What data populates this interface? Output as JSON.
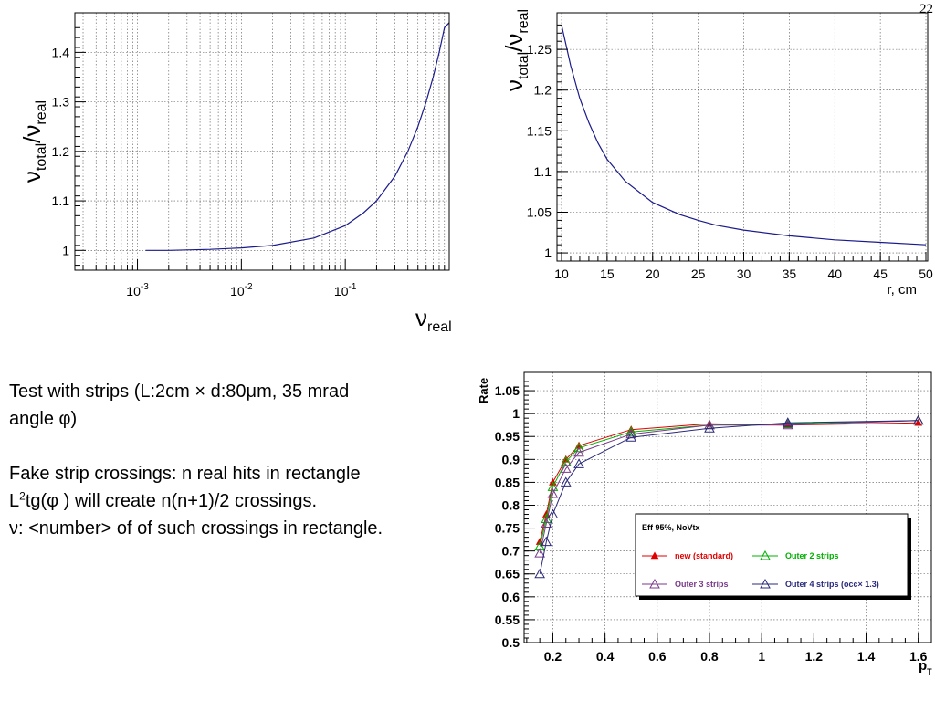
{
  "slide_number": "22",
  "text": {
    "line1": "Test with strips (L:2cm × d:80μm, 35 mrad",
    "line2": "angle φ)",
    "line3": "Fake strip crossings:  n real hits in rectangle",
    "line4_pre": "L",
    "line4_sup": "2",
    "line4_post": "tg(φ ) will create n(n+1)/2 crossings.",
    "line5": "ν: <number> of of such crossings in rectangle."
  },
  "chart_data": [
    {
      "type": "line",
      "xscale": "log",
      "xlim": [
        0.00025,
        1.0
      ],
      "ylim": [
        0.96,
        1.48
      ],
      "grid": true,
      "ylabel": {
        "main": "ν",
        "sub1": "total",
        "sep": "/ν",
        "sub2": "real"
      },
      "xlabel": {
        "main": "ν",
        "sub": "real"
      },
      "yticks": [
        {
          "v": 1,
          "label": "1"
        },
        {
          "v": 1.1,
          "label": "1.1"
        },
        {
          "v": 1.2,
          "label": "1.2"
        },
        {
          "v": 1.3,
          "label": "1.3"
        },
        {
          "v": 1.4,
          "label": "1.4"
        }
      ],
      "xticks": [
        {
          "v": 0.001,
          "base": "10",
          "exp": "-3"
        },
        {
          "v": 0.01,
          "base": "10",
          "exp": "-2"
        },
        {
          "v": 0.1,
          "base": "10",
          "exp": "-1"
        }
      ],
      "series": [
        {
          "color": "#1a1a8c",
          "x": [
            0.0012,
            0.002,
            0.005,
            0.01,
            0.02,
            0.05,
            0.1,
            0.15,
            0.2,
            0.3,
            0.4,
            0.5,
            0.6,
            0.7,
            0.8,
            0.9,
            1.0
          ],
          "y": [
            1.0,
            1.0,
            1.002,
            1.005,
            1.01,
            1.025,
            1.05,
            1.076,
            1.1,
            1.15,
            1.2,
            1.25,
            1.3,
            1.35,
            1.4,
            1.45,
            1.46
          ]
        }
      ]
    },
    {
      "type": "line",
      "xlim": [
        9.5,
        50.2
      ],
      "ylim": [
        0.99,
        1.295
      ],
      "grid": true,
      "ylabel": {
        "main": "ν",
        "sub1": "total",
        "sep": "/ν",
        "sub2": "real"
      },
      "xlabel": "r, cm",
      "yticks": [
        {
          "v": 1,
          "label": "1"
        },
        {
          "v": 1.05,
          "label": "1.05"
        },
        {
          "v": 1.1,
          "label": "1.1"
        },
        {
          "v": 1.15,
          "label": "1.15"
        },
        {
          "v": 1.2,
          "label": "1.2"
        },
        {
          "v": 1.25,
          "label": "1.25"
        }
      ],
      "xticks": [
        {
          "v": 10,
          "label": "10"
        },
        {
          "v": 15,
          "label": "15"
        },
        {
          "v": 20,
          "label": "20"
        },
        {
          "v": 25,
          "label": "25"
        },
        {
          "v": 30,
          "label": "30"
        },
        {
          "v": 35,
          "label": "35"
        },
        {
          "v": 40,
          "label": "40"
        },
        {
          "v": 45,
          "label": "45"
        },
        {
          "v": 50,
          "label": "50"
        }
      ],
      "series": [
        {
          "color": "#1a1a8c",
          "x": [
            10,
            11,
            12,
            13,
            14,
            15,
            17,
            20,
            23,
            25,
            27,
            30,
            35,
            40,
            45,
            50
          ],
          "y": [
            1.28,
            1.23,
            1.19,
            1.16,
            1.135,
            1.115,
            1.088,
            1.062,
            1.047,
            1.04,
            1.034,
            1.028,
            1.021,
            1.016,
            1.013,
            1.01
          ]
        }
      ]
    },
    {
      "type": "line",
      "xlim": [
        0.09,
        1.65
      ],
      "ylim": [
        0.5,
        1.09
      ],
      "grid": true,
      "ylabel": "Rate",
      "xlabel": {
        "main": "p",
        "sub": "T"
      },
      "yticks": [
        {
          "v": 0.5,
          "label": "0.5"
        },
        {
          "v": 0.55,
          "label": "0.55"
        },
        {
          "v": 0.6,
          "label": "0.6"
        },
        {
          "v": 0.65,
          "label": "0.65"
        },
        {
          "v": 0.7,
          "label": "0.7"
        },
        {
          "v": 0.75,
          "label": "0.75"
        },
        {
          "v": 0.8,
          "label": "0.8"
        },
        {
          "v": 0.85,
          "label": "0.85"
        },
        {
          "v": 0.9,
          "label": "0.9"
        },
        {
          "v": 0.95,
          "label": "0.95"
        },
        {
          "v": 1,
          "label": "1"
        },
        {
          "v": 1.05,
          "label": "1.05"
        }
      ],
      "xticks": [
        {
          "v": 0.2,
          "label": "0.2"
        },
        {
          "v": 0.4,
          "label": "0.4"
        },
        {
          "v": 0.6,
          "label": "0.6"
        },
        {
          "v": 0.8,
          "label": "0.8"
        },
        {
          "v": 1,
          "label": "1"
        },
        {
          "v": 1.2,
          "label": "1.2"
        },
        {
          "v": 1.4,
          "label": "1.4"
        },
        {
          "v": 1.6,
          "label": "1.6"
        }
      ],
      "legend": {
        "title": "Eff 95%, NoVtx",
        "placement": "right"
      },
      "x": [
        0.15,
        0.175,
        0.2,
        0.25,
        0.3,
        0.5,
        0.8,
        1.1,
        1.6
      ],
      "series": [
        {
          "name": "new (standard)",
          "color": "#e00000",
          "marker": "filled-triangle",
          "values": [
            0.72,
            0.78,
            0.85,
            0.9,
            0.93,
            0.965,
            0.978,
            0.975,
            0.98
          ]
        },
        {
          "name": "Outer 2 strips",
          "color": "#00b000",
          "marker": "open-triangle",
          "values": [
            0.71,
            0.77,
            0.84,
            0.895,
            0.925,
            0.96,
            0.975,
            0.978,
            0.985
          ]
        },
        {
          "name": "Outer 3 strips",
          "color": "#7a3a8a",
          "marker": "open-triangle",
          "values": [
            0.695,
            0.76,
            0.825,
            0.88,
            0.915,
            0.955,
            0.975,
            0.975,
            0.985
          ]
        },
        {
          "name": "Outer 4 strips (occ× 1.3)",
          "color": "#2a2a7a",
          "marker": "open-triangle",
          "values": [
            0.65,
            0.72,
            0.78,
            0.85,
            0.89,
            0.948,
            0.968,
            0.98,
            0.985
          ]
        }
      ]
    }
  ]
}
